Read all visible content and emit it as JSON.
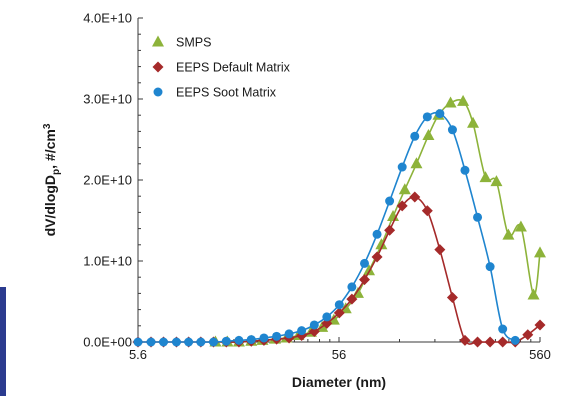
{
  "chart_data": {
    "type": "line",
    "xlabel": "Diameter (nm)",
    "ylabel": "dV/dlogD_p, #/cm³",
    "ylabel_main": "dV/dlogD",
    "ylabel_sub": "p",
    "ylabel_tail": ", #/cm",
    "ylabel_sup": "3",
    "x_scale": "log",
    "xlim": [
      5.6,
      560
    ],
    "ylim": [
      0,
      40000000000
    ],
    "x_ticks": [
      {
        "value": 5.6,
        "label": "5.6"
      },
      {
        "value": 56,
        "label": "56"
      },
      {
        "value": 560,
        "label": "560"
      }
    ],
    "y_ticks": [
      {
        "value": 0,
        "label": "0.0E+00"
      },
      {
        "value": 10000000000,
        "label": "1.0E+10"
      },
      {
        "value": 20000000000,
        "label": "2.0E+10"
      },
      {
        "value": 30000000000,
        "label": "3.0E+10"
      },
      {
        "value": 40000000000,
        "label": "4.0E+10"
      }
    ],
    "grid": false,
    "legend_position": "top-left",
    "series": [
      {
        "name": "SMPS",
        "color": "#8db33a",
        "marker": "triangle",
        "x": [
          13.6,
          15.6,
          17.8,
          20.5,
          23.3,
          26.9,
          30.7,
          35.2,
          40.6,
          46.2,
          52.8,
          60.5,
          69.6,
          79.0,
          91.0,
          104.0,
          119.0,
          136.0,
          156.0,
          175.0,
          201.0,
          232.0,
          260.0,
          300.0,
          340.0,
          390.0,
          450.0,
          520.0,
          560.0
        ],
        "y": [
          0,
          0,
          0,
          100000000,
          200000000,
          350000000,
          500000000,
          800000000,
          1200000000,
          1800000000,
          2700000000,
          4100000000,
          6000000000,
          8800000000,
          12000000000,
          15500000000,
          18800000000,
          22000000000,
          25500000000,
          28000000000,
          29500000000,
          29700000000,
          27000000000,
          20300000000,
          19800000000,
          13200000000,
          14200000000,
          5800000000,
          11000000000
        ]
      },
      {
        "name": "EEPS Default Matrix",
        "color": "#a52a2a",
        "marker": "diamond",
        "x": [
          5.6,
          6.5,
          7.5,
          8.7,
          10.0,
          11.5,
          13.3,
          15.4,
          17.8,
          20.5,
          23.7,
          27.4,
          31.6,
          36.5,
          42.2,
          48.7,
          56.2,
          64.9,
          75.0,
          86.6,
          100.0,
          115.5,
          133.4,
          154.0,
          177.8,
          205.4,
          237.1,
          273.8,
          316.2,
          365.2,
          421.7,
          486.9,
          560.0
        ],
        "y": [
          0,
          0,
          0,
          0,
          0,
          0,
          0,
          0,
          0,
          100000000,
          200000000,
          350000000,
          500000000,
          800000000,
          1300000000,
          2300000000,
          3600000000,
          5300000000,
          7700000000,
          10500000000,
          13800000000,
          16800000000,
          17900000000,
          16200000000,
          11400000000,
          5500000000,
          200000000,
          0,
          0,
          0,
          0,
          900000000,
          2100000000
        ]
      },
      {
        "name": "EEPS Soot Matrix",
        "color": "#1f85cf",
        "marker": "circle",
        "x": [
          5.6,
          6.5,
          7.5,
          8.7,
          10.0,
          11.5,
          13.3,
          15.4,
          17.8,
          20.5,
          23.7,
          27.4,
          31.6,
          36.5,
          42.2,
          48.7,
          56.2,
          64.9,
          75.0,
          86.6,
          100.0,
          115.5,
          133.4,
          154.0,
          177.8,
          205.4,
          237.1,
          273.8,
          316.2,
          365.2,
          421.7
        ],
        "y": [
          0,
          0,
          0,
          0,
          0,
          0,
          0,
          100000000,
          200000000,
          300000000,
          500000000,
          700000000,
          1000000000,
          1400000000,
          2100000000,
          3100000000,
          4600000000,
          6800000000,
          9700000000,
          13300000000,
          17400000000,
          21600000000,
          25400000000,
          27800000000,
          28200000000,
          26200000000,
          21200000000,
          15400000000,
          9300000000,
          1600000000,
          200000000
        ]
      }
    ]
  }
}
